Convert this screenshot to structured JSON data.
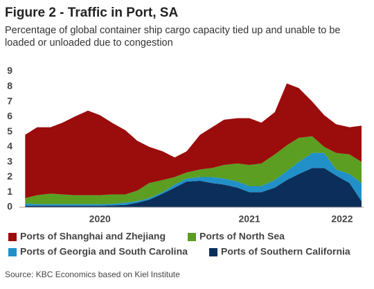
{
  "chart_data": {
    "type": "stacked_area",
    "title": "Figure 2 - Traffic in Port, SA",
    "subtitle": [
      "Percentage of global container ship cargo capacity tied up and unable to be",
      "loaded or unloaded due to congestion"
    ],
    "source": "Source: KBC Economics based on Kiel Institute",
    "x": [
      2020.0,
      2020.08,
      2020.17,
      2020.25,
      2020.33,
      2020.42,
      2020.5,
      2020.58,
      2020.67,
      2020.75,
      2020.83,
      2020.92,
      2021.0,
      2021.08,
      2021.17,
      2021.25,
      2021.33,
      2021.42,
      2021.5,
      2021.58,
      2021.67,
      2021.75,
      2021.83,
      2021.92,
      2022.0,
      2022.08,
      2022.17,
      2022.25
    ],
    "xlim": [
      2019.98,
      2022.25
    ],
    "xticks": [
      {
        "value": 2020.5,
        "label": "2020"
      },
      {
        "value": 2021.5,
        "label": "2021"
      },
      {
        "value": 2022.12,
        "label": "2022"
      }
    ],
    "ylim": [
      0,
      9
    ],
    "yticks": [
      0,
      1,
      2,
      3,
      4,
      5,
      6,
      7,
      8,
      9
    ],
    "grid": false,
    "series": [
      {
        "name": "Ports of Shanghai and Zhejiang",
        "color": "#9b0c0c",
        "values": [
          4.2,
          4.5,
          4.4,
          4.75,
          5.2,
          5.6,
          5.3,
          4.75,
          4.25,
          3.3,
          2.4,
          1.9,
          1.3,
          1.4,
          2.3,
          2.7,
          3.0,
          3.0,
          3.1,
          2.7,
          2.8,
          4.1,
          3.3,
          2.3,
          2.1,
          1.9,
          1.8,
          2.4
        ]
      },
      {
        "name": "Ports of North Sea",
        "color": "#5b9e22",
        "values": [
          0.35,
          0.6,
          0.7,
          0.65,
          0.6,
          0.6,
          0.6,
          0.63,
          0.55,
          0.7,
          1.0,
          0.8,
          0.5,
          0.4,
          0.5,
          0.6,
          0.9,
          1.2,
          1.4,
          1.5,
          1.7,
          1.7,
          1.6,
          1.1,
          0.4,
          1.1,
          1.3,
          1.4
        ]
      },
      {
        "name": "Ports of Georgia and South Carolina",
        "color": "#2290c8",
        "values": [
          0.15,
          0.1,
          0.1,
          0.1,
          0.1,
          0.1,
          0.1,
          0.1,
          0.15,
          0.1,
          0.1,
          0.1,
          0.2,
          0.2,
          0.25,
          0.4,
          0.4,
          0.4,
          0.4,
          0.4,
          0.5,
          0.6,
          0.8,
          1.0,
          1.0,
          0.4,
          0.6,
          1.2
        ]
      },
      {
        "name": "Ports of Southern California",
        "color": "#0b2f5a",
        "values": [
          0.1,
          0.1,
          0.1,
          0.1,
          0.1,
          0.1,
          0.1,
          0.12,
          0.15,
          0.3,
          0.5,
          0.9,
          1.3,
          1.7,
          1.75,
          1.6,
          1.5,
          1.3,
          1.0,
          1.0,
          1.3,
          1.8,
          2.2,
          2.6,
          2.6,
          2.1,
          1.6,
          0.4
        ]
      }
    ]
  }
}
